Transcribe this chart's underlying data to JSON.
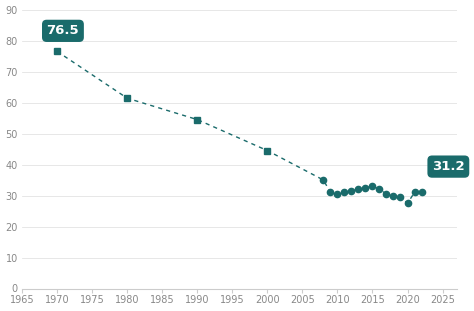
{
  "years_square": [
    1970,
    1980,
    1990,
    2000
  ],
  "values_square": [
    76.5,
    61.4,
    54.5,
    44.5
  ],
  "years_circle": [
    2008,
    2009,
    2010,
    2011,
    2012,
    2013,
    2014,
    2015,
    2016,
    2017,
    2018,
    2019,
    2020,
    2021,
    2022
  ],
  "values_circle": [
    35.0,
    31.0,
    30.5,
    31.0,
    31.5,
    32.0,
    32.5,
    33.0,
    32.0,
    30.5,
    30.0,
    29.5,
    27.5,
    31.0,
    31.2
  ],
  "line_color": "#1a6b6b",
  "marker_color": "#1a6b6b",
  "label_1_year": 1970,
  "label_1_value": 76.5,
  "label_1_text": "76.5",
  "label_2_year": 2022,
  "label_2_value": 31.2,
  "label_2_text": "31.2",
  "xlim": [
    1965,
    2027
  ],
  "ylim": [
    0,
    90
  ],
  "xticks": [
    1965,
    1970,
    1975,
    1980,
    1985,
    1990,
    1995,
    2000,
    2005,
    2010,
    2015,
    2020,
    2025
  ],
  "yticks": [
    0,
    10,
    20,
    30,
    40,
    50,
    60,
    70,
    80,
    90
  ],
  "background_color": "#ffffff",
  "box_color": "#1a6b6b",
  "box_text_color": "#ffffff",
  "tick_label_color": "#888888",
  "grid_color": "#dddddd",
  "spine_color": "#cccccc"
}
